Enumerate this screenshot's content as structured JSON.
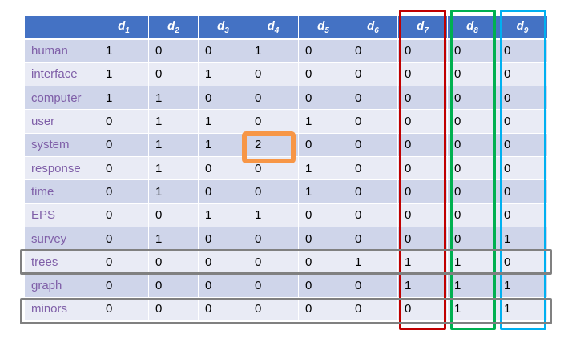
{
  "columns": [
    {
      "base": "d",
      "sub": "1"
    },
    {
      "base": "d",
      "sub": "2"
    },
    {
      "base": "d",
      "sub": "3"
    },
    {
      "base": "d",
      "sub": "4"
    },
    {
      "base": "d",
      "sub": "5"
    },
    {
      "base": "d",
      "sub": "6"
    },
    {
      "base": "d",
      "sub": "7"
    },
    {
      "base": "d",
      "sub": "8"
    },
    {
      "base": "d",
      "sub": "9"
    }
  ],
  "rows": [
    {
      "term": "human",
      "values": [
        "1",
        "0",
        "0",
        "1",
        "0",
        "0",
        "0",
        "0",
        "0"
      ]
    },
    {
      "term": "interface",
      "values": [
        "1",
        "0",
        "1",
        "0",
        "0",
        "0",
        "0",
        "0",
        "0"
      ]
    },
    {
      "term": "computer",
      "values": [
        "1",
        "1",
        "0",
        "0",
        "0",
        "0",
        "0",
        "0",
        "0"
      ]
    },
    {
      "term": "user",
      "values": [
        "0",
        "1",
        "1",
        "0",
        "1",
        "0",
        "0",
        "0",
        "0"
      ]
    },
    {
      "term": "system",
      "values": [
        "0",
        "1",
        "1",
        "2",
        "0",
        "0",
        "0",
        "0",
        "0"
      ]
    },
    {
      "term": "response",
      "values": [
        "0",
        "1",
        "0",
        "0",
        "1",
        "0",
        "0",
        "0",
        "0"
      ]
    },
    {
      "term": "time",
      "values": [
        "0",
        "1",
        "0",
        "0",
        "1",
        "0",
        "0",
        "0",
        "0"
      ]
    },
    {
      "term": "EPS",
      "values": [
        "0",
        "0",
        "1",
        "1",
        "0",
        "0",
        "0",
        "0",
        "0"
      ]
    },
    {
      "term": "survey",
      "values": [
        "0",
        "1",
        "0",
        "0",
        "0",
        "0",
        "0",
        "0",
        "1"
      ]
    },
    {
      "term": "trees",
      "values": [
        "0",
        "0",
        "0",
        "0",
        "0",
        "1",
        "1",
        "1",
        "0"
      ]
    },
    {
      "term": "graph",
      "values": [
        "0",
        "0",
        "0",
        "0",
        "0",
        "0",
        "1",
        "1",
        "1"
      ]
    },
    {
      "term": "minors",
      "values": [
        "0",
        "0",
        "0",
        "0",
        "0",
        "0",
        "0",
        "1",
        "1"
      ]
    }
  ],
  "colors": {
    "header": "#4472c4",
    "row_odd": "#cfd5ea",
    "row_even": "#e9ebf5",
    "term_text": "#7f5fa8",
    "highlight_cell": "#f79646",
    "highlight_d7": "#c00000",
    "highlight_d8": "#00b050",
    "highlight_d9": "#00b0f0",
    "highlight_rows": "#808080"
  }
}
